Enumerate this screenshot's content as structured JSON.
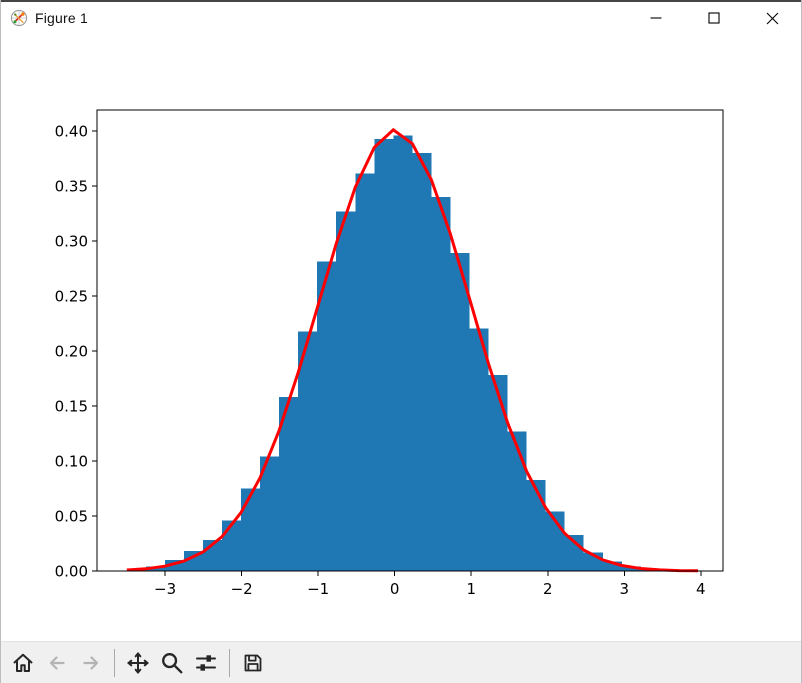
{
  "window": {
    "title": "Figure 1",
    "controls": [
      {
        "id": "minimize",
        "glyph": "minimize"
      },
      {
        "id": "maximize",
        "glyph": "maximize"
      },
      {
        "id": "close",
        "glyph": "close"
      }
    ]
  },
  "toolbar": {
    "items": [
      {
        "type": "button",
        "tool": "home"
      },
      {
        "type": "button",
        "tool": "back",
        "disabled": true
      },
      {
        "type": "button",
        "tool": "forward",
        "disabled": true
      },
      {
        "type": "separator"
      },
      {
        "type": "button",
        "tool": "pan"
      },
      {
        "type": "button",
        "tool": "zoom"
      },
      {
        "type": "button",
        "tool": "subplots"
      },
      {
        "type": "separator"
      },
      {
        "type": "button",
        "tool": "save"
      }
    ],
    "icon_color": "#262626",
    "disabled_icon_color": "#b4b4b4"
  },
  "chart_data": {
    "type": "bar",
    "subtype": "density-histogram-with-pdf-line",
    "title": "",
    "xlabel": "",
    "ylabel": "",
    "grid": false,
    "legend": null,
    "xlim": [
      -3.89,
      4.29
    ],
    "ylim": [
      0,
      0.419
    ],
    "x_ticks": {
      "values": [
        -3,
        -2,
        -1,
        0,
        1,
        2,
        3,
        4
      ],
      "labels": [
        "−3",
        "−2",
        "−1",
        "0",
        "1",
        "2",
        "3",
        "4"
      ]
    },
    "y_ticks": {
      "values": [
        0.0,
        0.05,
        0.1,
        0.15,
        0.2,
        0.25,
        0.3,
        0.35,
        0.4
      ],
      "labels": [
        "0.00",
        "0.05",
        "0.10",
        "0.15",
        "0.20",
        "0.25",
        "0.30",
        "0.35",
        "0.40"
      ]
    },
    "bar_color": "#1f77b4",
    "line_color": "#ff0000",
    "axis_color": "#000000",
    "bin_edges": [
      -3.5,
      -3.251,
      -3.003,
      -2.754,
      -2.505,
      -2.256,
      -2.008,
      -1.759,
      -1.51,
      -1.261,
      -1.013,
      -0.764,
      -0.515,
      -0.266,
      -0.018,
      0.231,
      0.48,
      0.729,
      0.977,
      1.226,
      1.475,
      1.724,
      1.973,
      2.221,
      2.47,
      2.719,
      2.968,
      3.216,
      3.465,
      3.714,
      3.963
    ],
    "bar_heights": [
      0.0013,
      0.004,
      0.01,
      0.018,
      0.028,
      0.046,
      0.0752,
      0.1039,
      0.158,
      0.2176,
      0.2812,
      0.3267,
      0.3615,
      0.3925,
      0.396,
      0.38,
      0.34,
      0.289,
      0.2206,
      0.1782,
      0.1267,
      0.0827,
      0.0539,
      0.0327,
      0.017,
      0.0085,
      0.004,
      0.0018,
      0.0008,
      0.0004
    ],
    "line_y": [
      0.0009,
      0.002,
      0.0044,
      0.009,
      0.0173,
      0.0312,
      0.0531,
      0.0848,
      0.1276,
      0.1804,
      0.2389,
      0.2975,
      0.3488,
      0.385,
      0.401,
      0.3884,
      0.3555,
      0.306,
      0.2476,
      0.1884,
      0.1348,
      0.0907,
      0.0574,
      0.0342,
      0.0191,
      0.0101,
      0.005,
      0.0023,
      0.001,
      0.0004,
      0.0002
    ]
  }
}
